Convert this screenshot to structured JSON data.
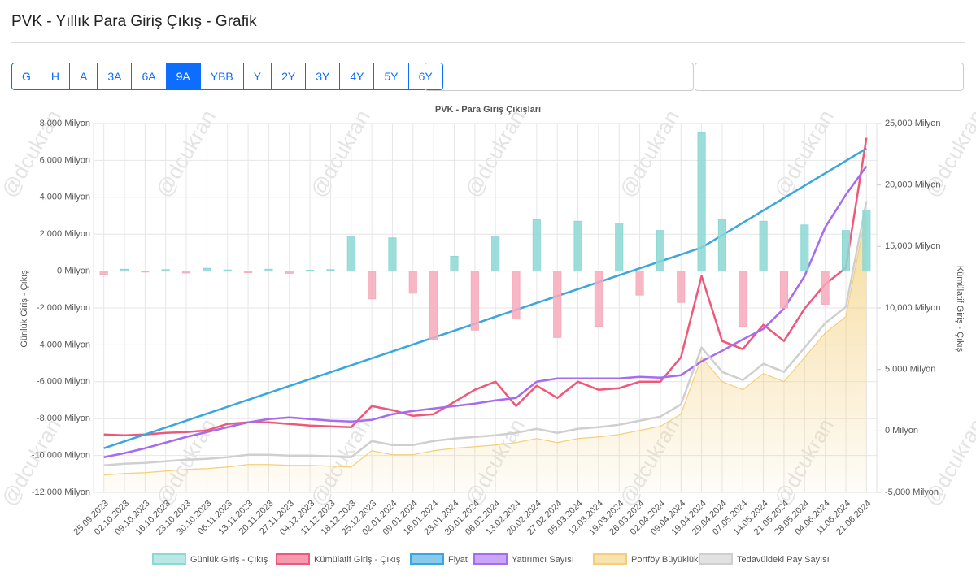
{
  "header": {
    "title": "PVK - Yıllık Para Giriş Çıkış - Grafik"
  },
  "toolbar": {
    "buttons": [
      {
        "label": "G"
      },
      {
        "label": "H"
      },
      {
        "label": "A"
      },
      {
        "label": "3A"
      },
      {
        "label": "6A"
      },
      {
        "label": "9A",
        "active": true
      },
      {
        "label": "YBB"
      },
      {
        "label": "Y"
      },
      {
        "label": "2Y"
      },
      {
        "label": "3Y"
      },
      {
        "label": "4Y"
      },
      {
        "label": "5Y"
      },
      {
        "label": "6Y"
      }
    ]
  },
  "watermark": "@dcukran",
  "chart_data": {
    "type": "bar-line",
    "title": "PVK - Para Giriş Çıkışları",
    "y_label": "Günlük Giriş - Çıkış",
    "y2_label": "Kümülatif Giriş - Çıkış",
    "legend": "bottom",
    "grid": true,
    "categories": [
      "25.09.2023",
      "02.10.2023",
      "09.10.2023",
      "16.10.2023",
      "23.10.2023",
      "30.10.2023",
      "06.11.2023",
      "13.11.2023",
      "20.11.2023",
      "27.11.2023",
      "04.12.2023",
      "11.12.2023",
      "18.12.2023",
      "25.12.2023",
      "02.01.2024",
      "09.01.2024",
      "16.01.2024",
      "23.01.2024",
      "30.01.2024",
      "06.02.2024",
      "13.02.2024",
      "20.02.2024",
      "27.02.2024",
      "05.03.2024",
      "12.03.2024",
      "19.03.2024",
      "26.03.2024",
      "02.04.2024",
      "09.04.2024",
      "19.04.2024",
      "29.04.2024",
      "07.05.2024",
      "14.05.2024",
      "21.05.2024",
      "28.05.2024",
      "04.06.2024",
      "11.06.2024",
      "21.06.2024"
    ],
    "ylim": [
      -12000,
      8000
    ],
    "yticks": [
      {
        "value": -12000,
        "label": "-12,000 Milyon"
      },
      {
        "value": -10000,
        "label": "-10,000 Milyon"
      },
      {
        "value": -8000,
        "label": "-8,000 Milyon"
      },
      {
        "value": -6000,
        "label": "-6,000 Milyon"
      },
      {
        "value": -4000,
        "label": "-4,000 Milyon"
      },
      {
        "value": -2000,
        "label": "-2,000 Milyon"
      },
      {
        "value": 0,
        "label": "0 Milyon"
      },
      {
        "value": 2000,
        "label": "2,000 Milyon"
      },
      {
        "value": 4000,
        "label": "4,000 Milyon"
      },
      {
        "value": 6000,
        "label": "6,000 Milyon"
      },
      {
        "value": 8000,
        "label": "8,000 Milyon"
      }
    ],
    "y2lim": [
      -5000,
      25000
    ],
    "y2ticks": [
      {
        "value": -5000,
        "label": "-5,000 Milyon"
      },
      {
        "value": 0,
        "label": "0 Milyon"
      },
      {
        "value": 5000,
        "label": "5,000 Milyon"
      },
      {
        "value": 10000,
        "label": "10,000 Milyon"
      },
      {
        "value": 15000,
        "label": "15,000 Milyon"
      },
      {
        "value": 20000,
        "label": "20,000 Milyon"
      },
      {
        "value": 25000,
        "label": "25,000 Milyon"
      }
    ],
    "series": [
      {
        "name": "Günlük Giriş - Çıkış",
        "type": "bar",
        "axis": "y",
        "color": "#8cd8d3",
        "negative_color": "#f7aabb",
        "values": [
          -200,
          100,
          -50,
          80,
          -100,
          150,
          60,
          -80,
          100,
          -120,
          50,
          80,
          1900,
          -1500,
          1800,
          -1200,
          -3700,
          800,
          -3200,
          1900,
          -2600,
          2800,
          -3600,
          2700,
          -3000,
          2600,
          -1300,
          2200,
          -1700,
          7500,
          2800,
          -3000,
          2700,
          -2000,
          2500,
          -1800,
          2200,
          3300
        ]
      },
      {
        "name": "Kümülatif Giriş - Çıkış",
        "type": "line",
        "axis": "y2",
        "color": "#f0587a",
        "values": [
          -291,
          -357,
          -291,
          -159,
          -93,
          40,
          568,
          701,
          701,
          568,
          436,
          370,
          304,
          2023,
          1692,
          1229,
          1362,
          2353,
          3345,
          4006,
          2023,
          3675,
          2684,
          4006,
          3345,
          3477,
          4006,
          4006,
          5988,
          12598,
          7311,
          6650,
          8633,
          7311,
          9955,
          11938,
          13260,
          23836
        ]
      },
      {
        "name": "Fiyat",
        "type": "line",
        "axis": "y2",
        "color": "#3aa6e0",
        "values": [
          -1415,
          -852,
          -289,
          274,
          837,
          1400,
          1963,
          2526,
          3089,
          3652,
          4215,
          4778,
          5341,
          5904,
          6467,
          7030,
          7593,
          8156,
          8719,
          9282,
          9845,
          10408,
          10971,
          11534,
          12097,
          12660,
          13223,
          13786,
          14349,
          14912,
          15919,
          16926,
          17933,
          18940,
          19947,
          20954,
          21961,
          22970
        ]
      },
      {
        "name": "Yatırımcı Sayısı",
        "type": "line",
        "axis": "y2",
        "color": "#a56bf0",
        "values": [
          -2142,
          -1811,
          -1414,
          -952,
          -489,
          -93,
          304,
          701,
          965,
          1097,
          965,
          833,
          767,
          899,
          1362,
          1626,
          1824,
          2023,
          2221,
          2486,
          2684,
          4006,
          4270,
          4270,
          4270,
          4270,
          4402,
          4336,
          4535,
          5659,
          6518,
          7443,
          8302,
          9955,
          12599,
          16565,
          19209,
          21522
        ]
      },
      {
        "name": "Portföy Büyüklük",
        "type": "area",
        "axis": "y2",
        "color": "#f3cf7a",
        "values": [
          -3596,
          -3464,
          -3398,
          -3265,
          -3133,
          -3067,
          -2935,
          -2737,
          -2737,
          -2803,
          -2803,
          -2869,
          -2935,
          -1613,
          -1943,
          -1943,
          -1613,
          -1414,
          -1282,
          -1150,
          -952,
          -621,
          -952,
          -621,
          -489,
          -291,
          40,
          370,
          1362,
          5988,
          4006,
          3345,
          4667,
          4006,
          5988,
          7971,
          9293,
          17886
        ]
      },
      {
        "name": "Tedavüldeki Pay Sayısı",
        "type": "line",
        "axis": "y2",
        "color": "#cfcfcf",
        "values": [
          -2803,
          -2671,
          -2605,
          -2472,
          -2340,
          -2274,
          -2142,
          -1944,
          -1944,
          -2010,
          -2010,
          -2076,
          -2142,
          -820,
          -1150,
          -1150,
          -820,
          -621,
          -489,
          -357,
          -159,
          172,
          -159,
          172,
          304,
          502,
          833,
          1163,
          2155,
          6781,
          4799,
          4138,
          5460,
          4799,
          6781,
          8764,
          10086,
          18679
        ]
      }
    ]
  }
}
